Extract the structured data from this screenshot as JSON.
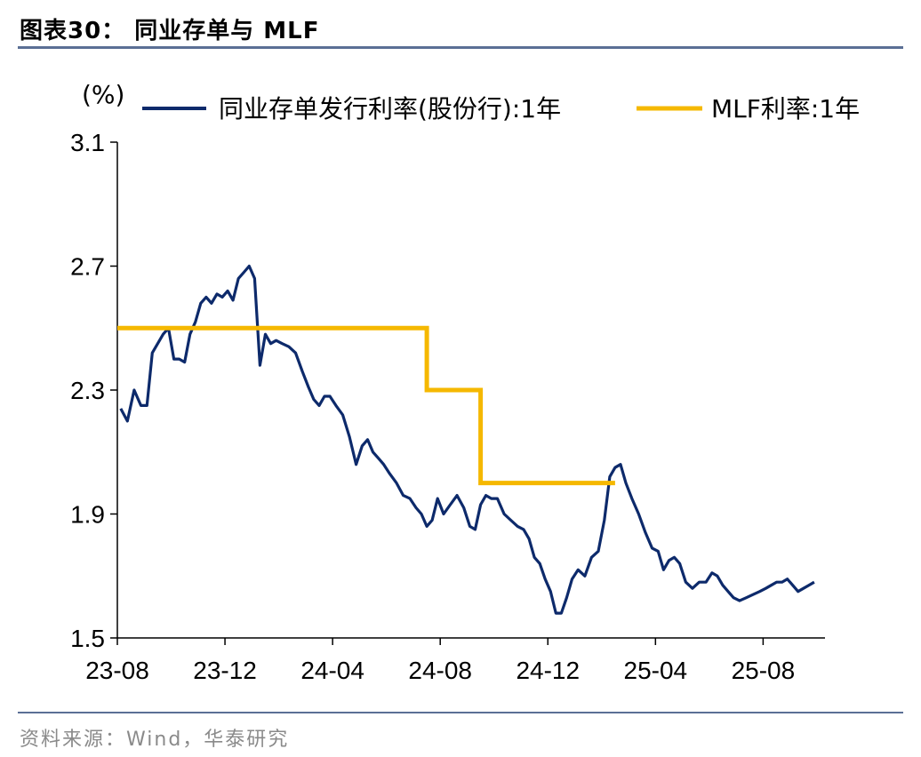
{
  "figure": {
    "title": "图表30：   同业存单与 MLF",
    "source": "资料来源：Wind，华泰研究"
  },
  "chart_data": {
    "type": "line",
    "unit_label": "(%)",
    "ylim": [
      1.5,
      3.1
    ],
    "yticks": [
      "3.1",
      "2.7",
      "2.3",
      "1.9",
      "1.5"
    ],
    "xticks": [
      "23-08",
      "23-12",
      "24-04",
      "24-08",
      "24-12",
      "25-04",
      "25-08"
    ],
    "legend_position": "top",
    "grid": false,
    "series": [
      {
        "name": "同业存单发行利率(股份行):1年",
        "color": "#0d2a6b",
        "x": [
          "23-08",
          "23-08",
          "23-08",
          "23-08",
          "23-09",
          "23-09",
          "23-09",
          "23-09",
          "23-09",
          "23-10",
          "23-10",
          "23-10",
          "23-10",
          "23-10",
          "23-11",
          "23-11",
          "23-11",
          "23-11",
          "23-11",
          "23-12",
          "23-12",
          "23-12",
          "23-12",
          "23-12",
          "24-01",
          "24-01",
          "24-01",
          "24-01",
          "24-01",
          "24-02",
          "24-02",
          "24-02",
          "24-02",
          "24-03",
          "24-03",
          "24-03",
          "24-03",
          "24-03",
          "24-04",
          "24-04",
          "24-04",
          "24-04",
          "24-05",
          "24-05",
          "24-05",
          "24-05",
          "24-05",
          "24-06",
          "24-06",
          "24-06",
          "24-06",
          "24-07",
          "24-07",
          "24-07",
          "24-07",
          "24-07",
          "24-08",
          "24-08",
          "24-08",
          "24-08",
          "24-09",
          "24-09",
          "24-09",
          "24-09",
          "24-09",
          "24-10",
          "24-10",
          "24-10",
          "24-10",
          "24-11",
          "24-11",
          "24-11",
          "24-11",
          "24-11",
          "24-12",
          "24-12",
          "24-12",
          "24-12",
          "24-12",
          "25-01",
          "25-01",
          "25-01",
          "25-01",
          "25-02",
          "25-02",
          "25-02",
          "25-02",
          "25-02",
          "25-03",
          "25-03",
          "25-03",
          "25-03",
          "25-04",
          "25-04",
          "25-04",
          "25-04",
          "25-04",
          "25-05",
          "25-05",
          "25-05",
          "25-05",
          "25-06",
          "25-06",
          "25-06",
          "25-06",
          "25-06",
          "25-07",
          "25-07",
          "25-07",
          "25-07",
          "25-08",
          "25-08",
          "25-08",
          "25-08",
          "25-08",
          "25-09",
          "25-09",
          "25-09",
          "25-09",
          "25-09"
        ],
        "values": [
          2.24,
          2.2,
          2.3,
          2.25,
          2.25,
          2.42,
          2.45,
          2.48,
          2.5,
          2.4,
          2.4,
          2.39,
          2.48,
          2.52,
          2.58,
          2.6,
          2.58,
          2.61,
          2.6,
          2.62,
          2.59,
          2.66,
          2.68,
          2.7,
          2.66,
          2.38,
          2.48,
          2.45,
          2.46,
          2.45,
          2.44,
          2.42,
          2.36,
          2.31,
          2.27,
          2.25,
          2.28,
          2.28,
          2.25,
          2.22,
          2.15,
          2.06,
          2.12,
          2.14,
          2.1,
          2.08,
          2.06,
          2.03,
          2.0,
          1.96,
          1.95,
          1.92,
          1.9,
          1.86,
          1.88,
          1.95,
          1.9,
          1.93,
          1.96,
          1.92,
          1.86,
          1.85,
          1.93,
          1.96,
          1.95,
          1.95,
          1.9,
          1.88,
          1.86,
          1.85,
          1.82,
          1.76,
          1.74,
          1.69,
          1.65,
          1.58,
          1.58,
          1.63,
          1.69,
          1.72,
          1.7,
          1.76,
          1.78,
          1.88,
          2.02,
          2.05,
          2.06,
          2.0,
          1.95,
          1.9,
          1.84,
          1.79,
          1.78,
          1.72,
          1.75,
          1.76,
          1.74,
          1.68,
          1.66,
          1.68,
          1.68,
          1.71,
          1.7,
          1.67,
          1.65,
          1.63,
          1.62,
          1.63,
          1.64,
          1.65,
          1.66,
          1.67,
          1.68,
          1.68,
          1.69,
          1.67,
          1.65,
          1.66,
          1.67,
          1.68
        ]
      },
      {
        "name": "MLF利率:1年",
        "color": "#f5b800",
        "steps": [
          {
            "from": "23-08",
            "value": 2.5
          },
          {
            "from": "24-07",
            "value": 2.3
          },
          {
            "from": "24-09",
            "value": 2.0
          },
          {
            "to": "25-02"
          }
        ]
      }
    ]
  }
}
